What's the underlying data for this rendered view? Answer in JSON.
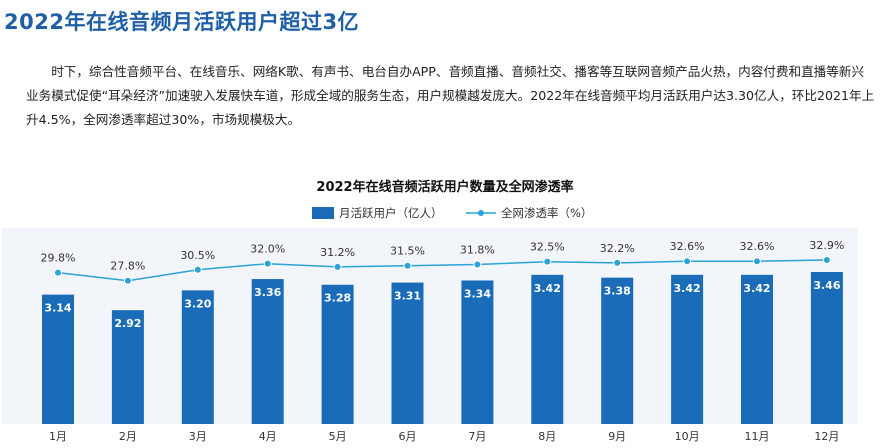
{
  "page": {
    "heading": "2022年在线音频月活跃用户超过3亿",
    "intro": "时下，综合性音频平台、在线音乐、网络K歌、有声书、电台自办APP、音频直播、音频社交、播客等互联网音频产品火热，内容付费和直播等新兴业务模式促使“耳朵经济”加速驶入发展快车道，形成全域的服务生态，用户规模越发庞大。2022年在线音频平均月活跃用户达3.30亿人，环比2021年上升4.5%，全网渗透率超过30%，市场规模极大。"
  },
  "chart_data": {
    "type": "bar",
    "title": "2022年在线音频活跃用户数量及全网渗透率",
    "categories": [
      "1月",
      "2月",
      "3月",
      "4月",
      "5月",
      "6月",
      "7月",
      "8月",
      "9月",
      "10月",
      "11月",
      "12月"
    ],
    "series": [
      {
        "name": "月活跃用户（亿人）",
        "type": "bar",
        "values": [
          3.14,
          2.92,
          3.2,
          3.36,
          3.28,
          3.31,
          3.34,
          3.42,
          3.38,
          3.42,
          3.42,
          3.46
        ],
        "labels": [
          "3.14",
          "2.92",
          "3.20",
          "3.36",
          "3.28",
          "3.31",
          "3.34",
          "3.42",
          "3.38",
          "3.42",
          "3.42",
          "3.46"
        ],
        "color": "#1a6cb8"
      },
      {
        "name": "全网渗透率（%）",
        "type": "line",
        "values": [
          29.8,
          27.8,
          30.5,
          32.0,
          31.2,
          31.5,
          31.8,
          32.5,
          32.2,
          32.6,
          32.6,
          32.9
        ],
        "labels": [
          "29.8%",
          "27.8%",
          "30.5%",
          "32.0%",
          "31.2%",
          "31.5%",
          "31.8%",
          "32.5%",
          "32.2%",
          "32.6%",
          "32.6%",
          "32.9%"
        ],
        "color": "#2aa3d6"
      }
    ],
    "legend_position": "top-center",
    "grid": false
  }
}
